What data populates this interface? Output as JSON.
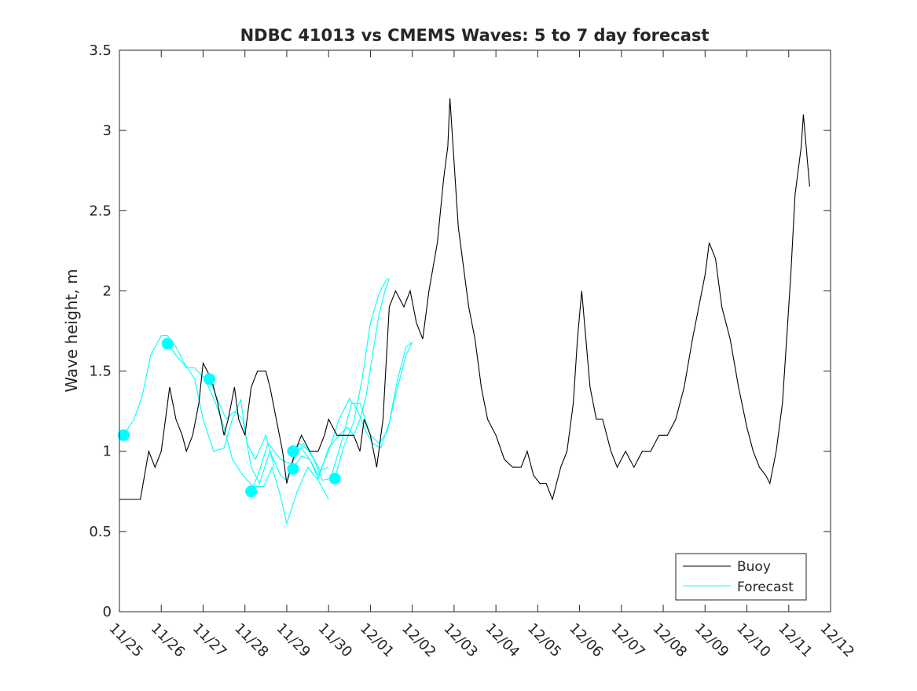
{
  "chart_data": {
    "type": "line",
    "title": "NDBC 41013 vs CMEMS Waves: 5 to 7 day forecast",
    "xlabel": "",
    "ylabel": "Wave height, m",
    "x_unit": "days since 11/25 00:00",
    "xlim": [
      0,
      17
    ],
    "ylim": [
      0,
      3.5
    ],
    "grid": false,
    "legend_position": "bottom-right",
    "x_ticks": [
      {
        "x": 0,
        "label": "11/25"
      },
      {
        "x": 1,
        "label": "11/26"
      },
      {
        "x": 2,
        "label": "11/27"
      },
      {
        "x": 3,
        "label": "11/28"
      },
      {
        "x": 4,
        "label": "11/29"
      },
      {
        "x": 5,
        "label": "11/30"
      },
      {
        "x": 6,
        "label": "12/01"
      },
      {
        "x": 7,
        "label": "12/02"
      },
      {
        "x": 8,
        "label": "12/03"
      },
      {
        "x": 9,
        "label": "12/04"
      },
      {
        "x": 10,
        "label": "12/05"
      },
      {
        "x": 11,
        "label": "12/06"
      },
      {
        "x": 12,
        "label": "12/07"
      },
      {
        "x": 13,
        "label": "12/08"
      },
      {
        "x": 14,
        "label": "12/09"
      },
      {
        "x": 15,
        "label": "12/10"
      },
      {
        "x": 16,
        "label": "12/11"
      },
      {
        "x": 17,
        "label": "12/12"
      }
    ],
    "y_ticks": [
      {
        "y": 0,
        "label": "0"
      },
      {
        "y": 0.5,
        "label": "0.5"
      },
      {
        "y": 1,
        "label": "1"
      },
      {
        "y": 1.5,
        "label": "1.5"
      },
      {
        "y": 2,
        "label": "2"
      },
      {
        "y": 2.5,
        "label": "2.5"
      },
      {
        "y": 3,
        "label": "3"
      },
      {
        "y": 3.5,
        "label": "3.5"
      }
    ],
    "series": [
      {
        "name": "Buoy",
        "color": "#000000",
        "points": [
          [
            0.0,
            0.7
          ],
          [
            0.3,
            0.7
          ],
          [
            0.5,
            0.7
          ],
          [
            0.7,
            1.0
          ],
          [
            0.85,
            0.9
          ],
          [
            1.0,
            1.0
          ],
          [
            1.1,
            1.2
          ],
          [
            1.2,
            1.4
          ],
          [
            1.35,
            1.2
          ],
          [
            1.5,
            1.1
          ],
          [
            1.6,
            1.0
          ],
          [
            1.75,
            1.1
          ],
          [
            1.9,
            1.3
          ],
          [
            2.0,
            1.55
          ],
          [
            2.1,
            1.5
          ],
          [
            2.2,
            1.45
          ],
          [
            2.35,
            1.3
          ],
          [
            2.5,
            1.1
          ],
          [
            2.6,
            1.2
          ],
          [
            2.75,
            1.4
          ],
          [
            2.85,
            1.2
          ],
          [
            3.0,
            1.1
          ],
          [
            3.15,
            1.4
          ],
          [
            3.3,
            1.5
          ],
          [
            3.5,
            1.5
          ],
          [
            3.6,
            1.4
          ],
          [
            3.75,
            1.2
          ],
          [
            3.9,
            1.0
          ],
          [
            4.0,
            0.8
          ],
          [
            4.2,
            1.0
          ],
          [
            4.35,
            1.1
          ],
          [
            4.55,
            1.0
          ],
          [
            4.75,
            1.0
          ],
          [
            4.9,
            1.1
          ],
          [
            5.0,
            1.2
          ],
          [
            5.2,
            1.1
          ],
          [
            5.4,
            1.1
          ],
          [
            5.6,
            1.1
          ],
          [
            5.75,
            1.0
          ],
          [
            5.85,
            1.2
          ],
          [
            6.0,
            1.1
          ],
          [
            6.15,
            0.9
          ],
          [
            6.3,
            1.2
          ],
          [
            6.45,
            1.9
          ],
          [
            6.6,
            2.0
          ],
          [
            6.8,
            1.9
          ],
          [
            6.95,
            2.0
          ],
          [
            7.1,
            1.8
          ],
          [
            7.25,
            1.7
          ],
          [
            7.4,
            2.0
          ],
          [
            7.6,
            2.3
          ],
          [
            7.75,
            2.7
          ],
          [
            7.85,
            2.9
          ],
          [
            7.9,
            3.2
          ],
          [
            8.0,
            2.8
          ],
          [
            8.1,
            2.4
          ],
          [
            8.2,
            2.2
          ],
          [
            8.35,
            1.9
          ],
          [
            8.5,
            1.7
          ],
          [
            8.65,
            1.4
          ],
          [
            8.8,
            1.2
          ],
          [
            9.0,
            1.1
          ],
          [
            9.2,
            0.95
          ],
          [
            9.4,
            0.9
          ],
          [
            9.6,
            0.9
          ],
          [
            9.75,
            1.0
          ],
          [
            9.9,
            0.85
          ],
          [
            10.05,
            0.8
          ],
          [
            10.2,
            0.8
          ],
          [
            10.35,
            0.7
          ],
          [
            10.55,
            0.9
          ],
          [
            10.7,
            1.0
          ],
          [
            10.85,
            1.3
          ],
          [
            10.95,
            1.7
          ],
          [
            11.05,
            2.0
          ],
          [
            11.15,
            1.7
          ],
          [
            11.25,
            1.4
          ],
          [
            11.4,
            1.2
          ],
          [
            11.55,
            1.2
          ],
          [
            11.75,
            1.0
          ],
          [
            11.9,
            0.9
          ],
          [
            12.1,
            1.0
          ],
          [
            12.3,
            0.9
          ],
          [
            12.5,
            1.0
          ],
          [
            12.7,
            1.0
          ],
          [
            12.9,
            1.1
          ],
          [
            13.1,
            1.1
          ],
          [
            13.3,
            1.2
          ],
          [
            13.5,
            1.4
          ],
          [
            13.7,
            1.7
          ],
          [
            13.85,
            1.9
          ],
          [
            14.0,
            2.1
          ],
          [
            14.1,
            2.3
          ],
          [
            14.25,
            2.2
          ],
          [
            14.4,
            1.9
          ],
          [
            14.6,
            1.7
          ],
          [
            14.8,
            1.4
          ],
          [
            15.0,
            1.15
          ],
          [
            15.15,
            1.0
          ],
          [
            15.3,
            0.9
          ],
          [
            15.45,
            0.85
          ],
          [
            15.55,
            0.8
          ],
          [
            15.7,
            1.0
          ],
          [
            15.85,
            1.3
          ],
          [
            15.95,
            1.7
          ],
          [
            16.05,
            2.1
          ],
          [
            16.15,
            2.6
          ],
          [
            16.3,
            2.9
          ],
          [
            16.35,
            3.1
          ],
          [
            16.45,
            2.8
          ],
          [
            16.5,
            2.65
          ]
        ]
      },
      {
        "name": "Forecast",
        "color": "#00ffff",
        "runs": [
          [
            [
              0.1,
              1.1
            ],
            [
              0.35,
              1.2
            ],
            [
              0.55,
              1.35
            ],
            [
              0.75,
              1.6
            ],
            [
              1.0,
              1.72
            ],
            [
              1.15,
              1.72
            ],
            [
              1.35,
              1.65
            ],
            [
              1.55,
              1.55
            ],
            [
              1.8,
              1.45
            ],
            [
              2.0,
              1.2
            ],
            [
              2.25,
              1.0
            ],
            [
              2.5,
              1.02
            ],
            [
              2.7,
              1.2
            ],
            [
              2.9,
              1.32
            ],
            [
              3.05,
              1.05
            ],
            [
              3.25,
              0.95
            ],
            [
              3.5,
              1.1
            ],
            [
              3.7,
              0.9
            ]
          ],
          [
            [
              1.15,
              1.67
            ],
            [
              1.35,
              1.6
            ],
            [
              1.6,
              1.52
            ],
            [
              1.8,
              1.52
            ],
            [
              2.05,
              1.45
            ],
            [
              2.3,
              1.3
            ],
            [
              2.5,
              1.15
            ],
            [
              2.7,
              0.95
            ],
            [
              2.95,
              0.85
            ],
            [
              3.2,
              0.78
            ],
            [
              3.45,
              0.78
            ],
            [
              3.65,
              0.9
            ],
            [
              3.85,
              0.72
            ],
            [
              4.0,
              0.55
            ],
            [
              4.25,
              0.75
            ],
            [
              4.5,
              0.9
            ],
            [
              4.75,
              0.82
            ],
            [
              5.0,
              0.7
            ]
          ],
          [
            [
              2.15,
              1.45
            ],
            [
              2.35,
              1.32
            ],
            [
              2.55,
              1.2
            ],
            [
              2.75,
              1.25
            ],
            [
              2.95,
              1.2
            ],
            [
              3.15,
              0.9
            ],
            [
              3.35,
              0.8
            ],
            [
              3.6,
              1.0
            ],
            [
              3.85,
              0.85
            ],
            [
              4.0,
              0.82
            ],
            [
              4.3,
              1.05
            ],
            [
              4.55,
              1.0
            ],
            [
              4.8,
              0.88
            ],
            [
              5.0,
              0.9
            ]
          ],
          [
            [
              3.15,
              0.75
            ],
            [
              3.35,
              0.88
            ],
            [
              3.55,
              1.05
            ],
            [
              3.85,
              0.95
            ],
            [
              4.1,
              0.92
            ],
            [
              4.4,
              1.05
            ],
            [
              4.65,
              0.95
            ],
            [
              4.85,
              0.82
            ],
            [
              5.05,
              0.83
            ],
            [
              5.3,
              1.05
            ],
            [
              5.55,
              1.3
            ],
            [
              5.75,
              1.3
            ],
            [
              6.0,
              1.1
            ],
            [
              6.2,
              1.05
            ],
            [
              6.4,
              1.12
            ],
            [
              6.6,
              1.35
            ],
            [
              6.85,
              1.6
            ],
            [
              7.0,
              1.68
            ]
          ],
          [
            [
              4.15,
              1.0
            ],
            [
              4.35,
              1.02
            ],
            [
              4.55,
              0.95
            ],
            [
              4.75,
              0.85
            ],
            [
              5.0,
              1.0
            ],
            [
              5.25,
              1.2
            ],
            [
              5.5,
              1.33
            ],
            [
              5.7,
              1.25
            ],
            [
              5.9,
              1.12
            ],
            [
              6.05,
              1.05
            ],
            [
              6.25,
              1.02
            ],
            [
              6.45,
              1.18
            ],
            [
              6.65,
              1.45
            ],
            [
              6.85,
              1.65
            ],
            [
              7.0,
              1.68
            ]
          ],
          [
            [
              4.15,
              0.89
            ],
            [
              4.35,
              0.97
            ],
            [
              4.55,
              0.95
            ],
            [
              4.75,
              0.83
            ],
            [
              5.0,
              1.02
            ],
            [
              5.25,
              1.1
            ],
            [
              5.45,
              1.15
            ],
            [
              5.6,
              1.1
            ],
            [
              5.75,
              1.2
            ],
            [
              5.9,
              1.35
            ],
            [
              6.05,
              1.6
            ],
            [
              6.2,
              1.85
            ],
            [
              6.35,
              2.0
            ],
            [
              6.45,
              2.08
            ]
          ],
          [
            [
              5.15,
              0.83
            ],
            [
              5.35,
              1.02
            ],
            [
              5.6,
              1.18
            ],
            [
              5.8,
              1.45
            ],
            [
              6.0,
              1.8
            ],
            [
              6.2,
              1.98
            ],
            [
              6.4,
              2.08
            ]
          ]
        ]
      },
      {
        "name": "Forecast analysis points",
        "color": "#00ffff",
        "points": [
          [
            0.1,
            1.1
          ],
          [
            1.15,
            1.67
          ],
          [
            2.15,
            1.45
          ],
          [
            3.15,
            0.75
          ],
          [
            4.15,
            1.0
          ],
          [
            4.15,
            0.89
          ],
          [
            5.15,
            0.83
          ]
        ]
      }
    ],
    "legend": [
      {
        "label": "Buoy",
        "color": "#000000"
      },
      {
        "label": "Forecast",
        "color": "#00ffff"
      }
    ]
  }
}
